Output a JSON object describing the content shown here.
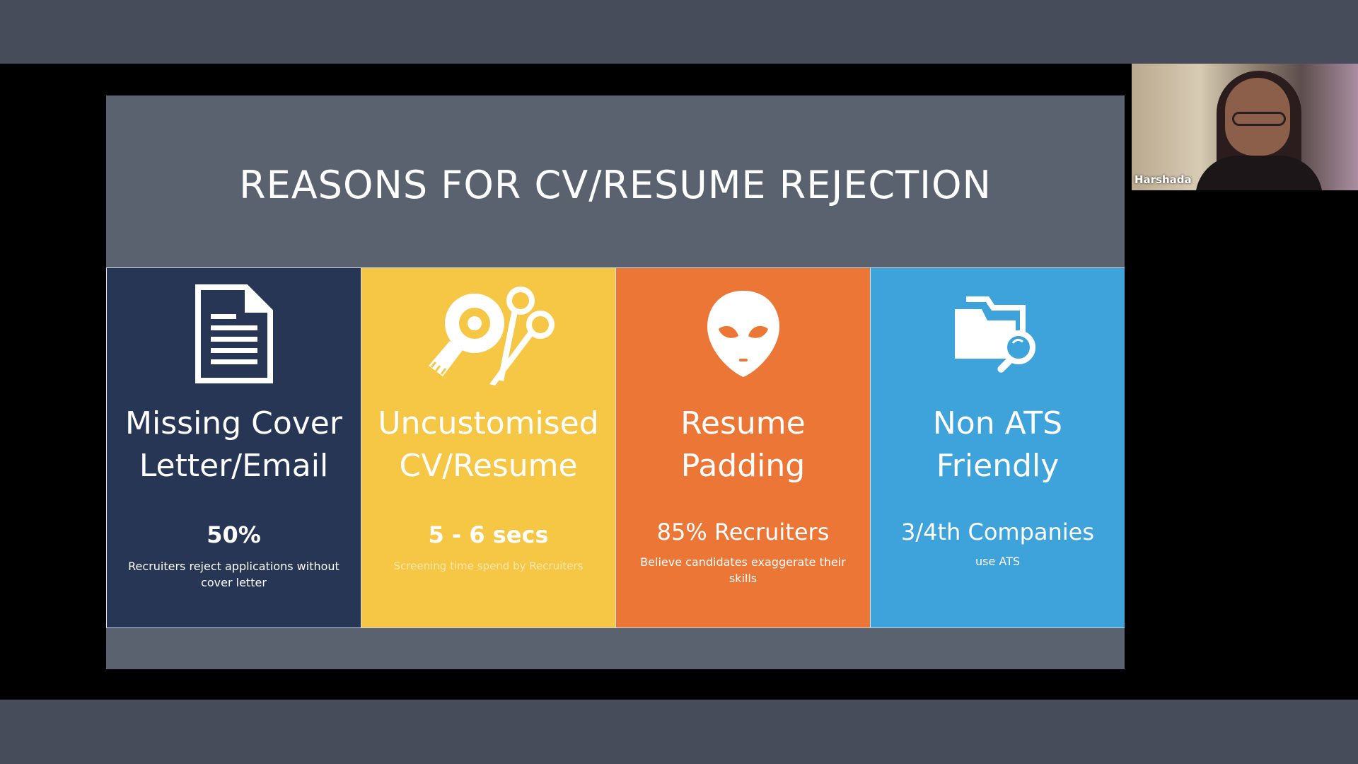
{
  "slide": {
    "title": "REASONS FOR CV/RESUME REJECTION",
    "panels": [
      {
        "icon": "document-icon",
        "heading": "Missing Cover\nLetter/Email",
        "stat": "50%",
        "caption": "Recruiters reject applications without cover letter",
        "color": "#263654"
      },
      {
        "icon": "tape-scissors-icon",
        "heading": "Uncustomised\nCV/Resume",
        "stat": "5 - 6 secs",
        "caption": "Screening time spend by Recruiters",
        "color": "#f6c744"
      },
      {
        "icon": "alien-icon",
        "heading": "Resume\nPadding",
        "stat": "85% Recruiters",
        "caption": "Believe candidates exaggerate their skills",
        "color": "#ec7635"
      },
      {
        "icon": "folder-search-icon",
        "heading": "Non ATS\nFriendly",
        "stat": "3/4th Companies",
        "caption": "use ATS",
        "color": "#3fa3db"
      }
    ]
  },
  "participant": {
    "name": "Harshada"
  }
}
